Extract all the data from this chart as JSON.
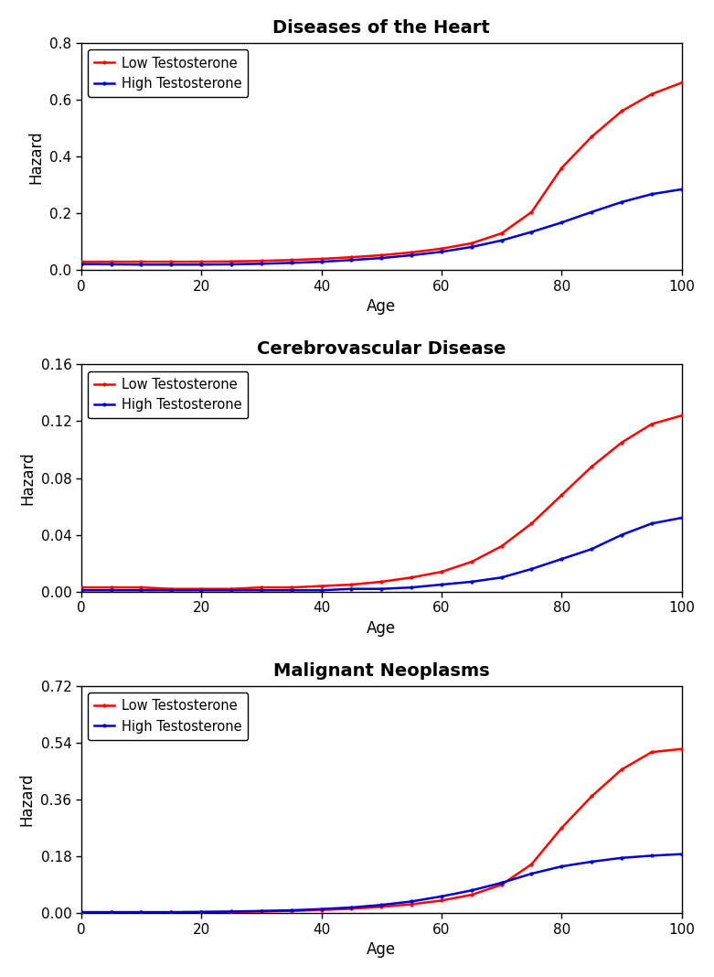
{
  "panels": [
    {
      "title": "Diseases of the Heart",
      "ylabel": "Hazard",
      "xlabel": "Age",
      "ylim": [
        0,
        0.8
      ],
      "yticks": [
        0.0,
        0.2,
        0.4,
        0.6,
        0.8
      ],
      "ytick_labels": [
        "0.0",
        "0.2",
        "0.4",
        "0.6",
        "0.8"
      ],
      "xlim": [
        0,
        100
      ],
      "xticks": [
        0,
        20,
        40,
        60,
        80,
        100
      ],
      "low_x": [
        0,
        5,
        10,
        15,
        20,
        25,
        30,
        35,
        40,
        45,
        50,
        55,
        60,
        65,
        70,
        75,
        80,
        85,
        90,
        95,
        100
      ],
      "low_y": [
        0.03,
        0.03,
        0.03,
        0.03,
        0.03,
        0.031,
        0.033,
        0.036,
        0.04,
        0.046,
        0.053,
        0.063,
        0.076,
        0.095,
        0.13,
        0.205,
        0.36,
        0.47,
        0.56,
        0.62,
        0.66
      ],
      "high_x": [
        0,
        5,
        10,
        15,
        20,
        25,
        30,
        35,
        40,
        45,
        50,
        55,
        60,
        65,
        70,
        75,
        80,
        85,
        90,
        95,
        100
      ],
      "high_y": [
        0.022,
        0.021,
        0.02,
        0.02,
        0.02,
        0.021,
        0.023,
        0.026,
        0.03,
        0.036,
        0.043,
        0.053,
        0.065,
        0.082,
        0.105,
        0.135,
        0.168,
        0.205,
        0.24,
        0.268,
        0.285
      ]
    },
    {
      "title": "Cerebrovascular Disease",
      "ylabel": "Hazard",
      "xlabel": "Age",
      "ylim": [
        0,
        0.16
      ],
      "yticks": [
        0.0,
        0.04,
        0.08,
        0.12,
        0.16
      ],
      "ytick_labels": [
        "0.00",
        "0.04",
        "0.08",
        "0.12",
        "0.16"
      ],
      "xlim": [
        0,
        100
      ],
      "xticks": [
        0,
        20,
        40,
        60,
        80,
        100
      ],
      "low_x": [
        0,
        5,
        10,
        15,
        20,
        25,
        30,
        35,
        40,
        45,
        50,
        55,
        60,
        65,
        70,
        75,
        80,
        85,
        90,
        95,
        100
      ],
      "low_y": [
        0.003,
        0.003,
        0.003,
        0.002,
        0.002,
        0.002,
        0.003,
        0.003,
        0.004,
        0.005,
        0.007,
        0.01,
        0.014,
        0.021,
        0.032,
        0.048,
        0.068,
        0.088,
        0.105,
        0.118,
        0.124
      ],
      "high_x": [
        0,
        5,
        10,
        15,
        20,
        25,
        30,
        35,
        40,
        45,
        50,
        55,
        60,
        65,
        70,
        75,
        80,
        85,
        90,
        95,
        100
      ],
      "high_y": [
        0.001,
        0.001,
        0.001,
        0.001,
        0.001,
        0.001,
        0.001,
        0.001,
        0.001,
        0.002,
        0.002,
        0.003,
        0.005,
        0.007,
        0.01,
        0.016,
        0.023,
        0.03,
        0.04,
        0.048,
        0.052
      ]
    },
    {
      "title": "Malignant Neoplasms",
      "ylabel": "Hazard",
      "xlabel": "Age",
      "ylim": [
        0,
        0.72
      ],
      "yticks": [
        0.0,
        0.18,
        0.36,
        0.54,
        0.72
      ],
      "ytick_labels": [
        "0.00",
        "0.18",
        "0.36",
        "0.54",
        "0.72"
      ],
      "xlim": [
        0,
        100
      ],
      "xticks": [
        0,
        20,
        40,
        60,
        80,
        100
      ],
      "low_x": [
        0,
        5,
        10,
        15,
        20,
        25,
        30,
        35,
        40,
        45,
        50,
        55,
        60,
        65,
        70,
        75,
        80,
        85,
        90,
        95,
        100
      ],
      "low_y": [
        0.003,
        0.003,
        0.003,
        0.003,
        0.003,
        0.004,
        0.005,
        0.007,
        0.01,
        0.014,
        0.02,
        0.028,
        0.04,
        0.058,
        0.09,
        0.155,
        0.27,
        0.37,
        0.455,
        0.51,
        0.52
      ],
      "high_x": [
        0,
        5,
        10,
        15,
        20,
        25,
        30,
        35,
        40,
        45,
        50,
        55,
        60,
        65,
        70,
        75,
        80,
        85,
        90,
        95,
        100
      ],
      "high_y": [
        0.003,
        0.003,
        0.003,
        0.003,
        0.004,
        0.005,
        0.007,
        0.009,
        0.013,
        0.018,
        0.026,
        0.037,
        0.053,
        0.072,
        0.096,
        0.125,
        0.148,
        0.163,
        0.175,
        0.182,
        0.187
      ]
    }
  ],
  "low_color": "#FF0000",
  "high_color": "#0000CD",
  "low_label": "Low Testosterone",
  "high_label": "High Testosterone",
  "marker": "o",
  "markersize": 2.5,
  "linewidth": 1.8,
  "background_color": "#FFFFFF",
  "title_fontsize": 14,
  "axis_label_fontsize": 12,
  "tick_fontsize": 11,
  "legend_fontsize": 10.5
}
